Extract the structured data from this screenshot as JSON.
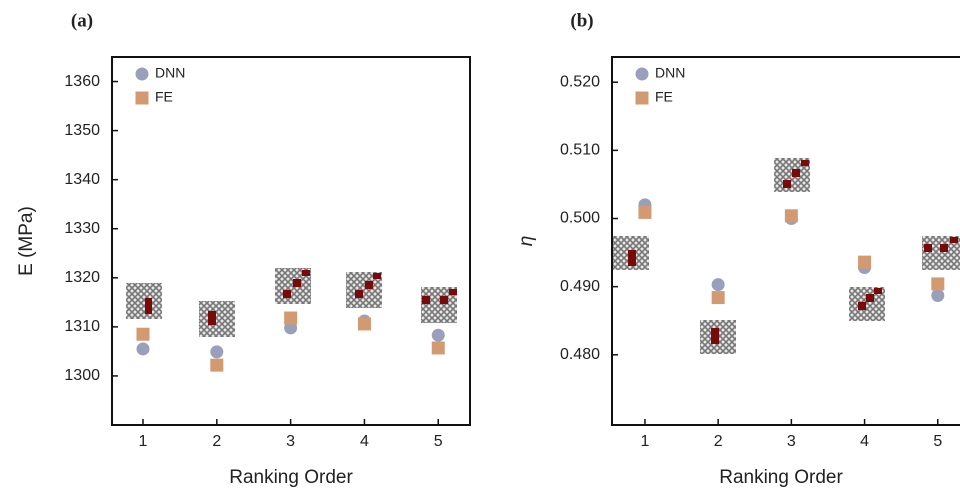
{
  "chart_data": [
    {
      "type": "scatter",
      "title": "(a)",
      "x_label": "Ranking Order",
      "y_label": "E (MPa)",
      "x": [
        1,
        2,
        3,
        4,
        5
      ],
      "xlim": [
        0.58,
        5.43
      ],
      "xticks": [
        1,
        2,
        3,
        4,
        5
      ],
      "ylim": [
        1290,
        1365
      ],
      "yticks": [
        1300,
        1310,
        1320,
        1330,
        1340,
        1350,
        1360
      ],
      "series": [
        {
          "name": "DNN",
          "color": "#9a9fbb",
          "marker": "circle",
          "values": [
            1305.5,
            1304.9,
            1309.8,
            1311.2,
            1308.3
          ]
        },
        {
          "name": "FE",
          "color": "#d39a72",
          "marker": "square",
          "values": [
            1308.5,
            1302.2,
            1311.8,
            1310.6,
            1305.7
          ]
        }
      ]
    },
    {
      "type": "scatter",
      "title": "(b)",
      "x_label": "Ranking Order",
      "y_label": "η",
      "x": [
        1,
        2,
        3,
        4,
        5
      ],
      "xlim": [
        0.55,
        5.44
      ],
      "xticks": [
        1,
        2,
        3,
        4,
        5
      ],
      "ylim": [
        0.4697,
        0.5237
      ],
      "yticks": [
        {
          "value": 0.48,
          "label": "0.480"
        },
        {
          "value": 0.49,
          "label": "0.490"
        },
        {
          "value": 0.5,
          "label": "0.500"
        },
        {
          "value": 0.51,
          "label": "0.510"
        },
        {
          "value": 0.52,
          "label": "0.520"
        }
      ],
      "series": [
        {
          "name": "DNN",
          "color": "#9a9fbb",
          "marker": "circle",
          "values": [
            0.502,
            0.4903,
            0.5,
            0.4928,
            0.4887
          ]
        },
        {
          "name": "FE",
          "color": "#d39a72",
          "marker": "square",
          "values": [
            0.5009,
            0.4884,
            0.5004,
            0.4936,
            0.4904
          ]
        }
      ]
    }
  ]
}
